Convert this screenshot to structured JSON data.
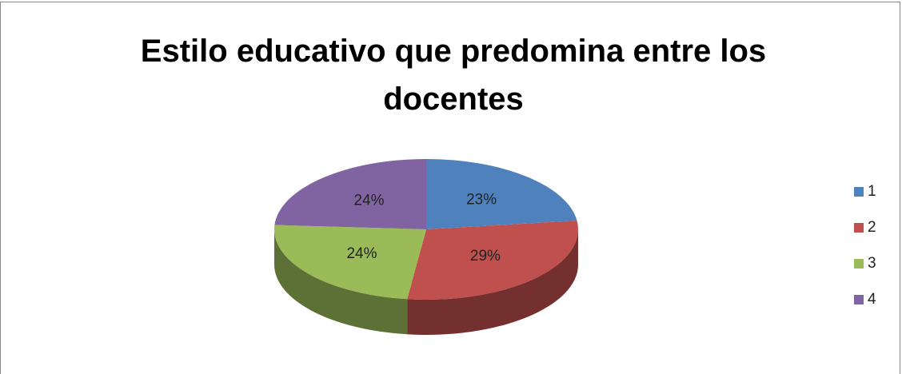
{
  "chart_data": {
    "type": "pie",
    "title": "Estilo educativo que predomina entre los docentes",
    "categories": [
      "1",
      "2",
      "3",
      "4"
    ],
    "values": [
      23,
      29,
      24,
      24
    ],
    "value_labels": [
      "23%",
      "29%",
      "24%",
      "24%"
    ],
    "colors": [
      "#4f81bd",
      "#c0504d",
      "#9bbb59",
      "#8064a2"
    ],
    "legend": "right"
  }
}
